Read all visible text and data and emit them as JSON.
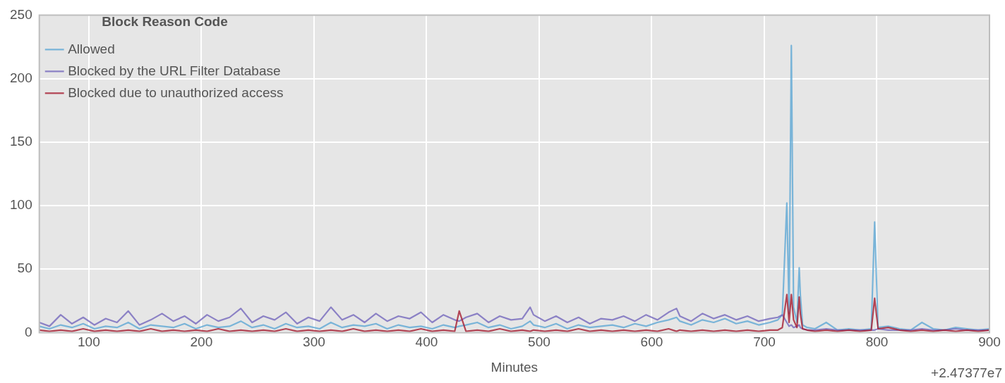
{
  "chart_data": {
    "type": "line",
    "xlabel": "Minutes",
    "legend_title": "Block Reason Code",
    "legend": "top left",
    "grid": true,
    "marker": "none",
    "line_style": "solid",
    "annotations": [
      "+2.47377e7"
    ],
    "xlim": [
      56,
      900
    ],
    "xticks": [
      100,
      200,
      300,
      400,
      500,
      600,
      700,
      800,
      900
    ],
    "ylim": [
      0,
      250
    ],
    "yticks": [
      0,
      50,
      100,
      150,
      200,
      250
    ],
    "x": [
      56,
      65,
      75,
      85,
      95,
      105,
      115,
      125,
      135,
      145,
      155,
      165,
      175,
      185,
      195,
      205,
      215,
      225,
      235,
      245,
      255,
      265,
      275,
      285,
      295,
      305,
      315,
      325,
      335,
      345,
      355,
      365,
      375,
      385,
      395,
      405,
      415,
      425,
      429,
      435,
      445,
      455,
      465,
      475,
      485,
      492,
      495,
      505,
      515,
      525,
      535,
      545,
      555,
      565,
      575,
      585,
      595,
      605,
      615,
      622,
      625,
      635,
      645,
      655,
      665,
      675,
      685,
      695,
      705,
      712,
      716,
      720,
      722,
      724,
      726,
      729,
      731,
      732,
      734,
      738,
      745,
      755,
      765,
      775,
      785,
      795,
      798,
      801,
      810,
      820,
      830,
      840,
      850,
      860,
      870,
      880,
      890,
      900
    ],
    "series": [
      {
        "name": "Allowed",
        "color": "#5ea8d4",
        "values": [
          5,
          3,
          6,
          4,
          7,
          3,
          5,
          4,
          8,
          3,
          6,
          5,
          4,
          7,
          3,
          6,
          4,
          5,
          9,
          4,
          6,
          3,
          7,
          4,
          5,
          3,
          8,
          4,
          6,
          5,
          7,
          3,
          6,
          4,
          5,
          3,
          6,
          4,
          5,
          6,
          8,
          4,
          6,
          3,
          5,
          9,
          6,
          4,
          7,
          3,
          6,
          4,
          5,
          6,
          4,
          7,
          5,
          8,
          10,
          12,
          9,
          6,
          10,
          8,
          11,
          7,
          9,
          6,
          8,
          10,
          14,
          102,
          15,
          226,
          20,
          8,
          51,
          30,
          6,
          4,
          3,
          8,
          2,
          3,
          2,
          3,
          87,
          4,
          5,
          3,
          2,
          8,
          3,
          2,
          4,
          3,
          2,
          3
        ]
      },
      {
        "name": "Blocked by the URL Filter Database",
        "color": "#7468bd",
        "values": [
          8,
          5,
          14,
          7,
          12,
          6,
          11,
          8,
          17,
          6,
          10,
          15,
          9,
          13,
          7,
          14,
          9,
          12,
          19,
          8,
          13,
          10,
          16,
          7,
          12,
          9,
          20,
          10,
          14,
          8,
          15,
          9,
          13,
          11,
          16,
          8,
          14,
          10,
          9,
          12,
          15,
          8,
          13,
          10,
          11,
          20,
          14,
          9,
          13,
          8,
          12,
          7,
          11,
          10,
          13,
          9,
          14,
          10,
          16,
          19,
          13,
          9,
          15,
          11,
          14,
          10,
          13,
          9,
          11,
          12,
          14,
          8,
          5,
          6,
          4,
          5,
          6,
          4,
          3,
          2,
          2,
          3,
          2,
          2,
          2,
          2,
          2,
          3,
          2,
          2,
          2,
          3,
          2,
          2,
          3,
          2,
          2,
          2
        ]
      },
      {
        "name": "Blocked due to unauthorized access",
        "color": "#a51c30",
        "values": [
          2,
          1,
          2,
          1,
          3,
          1,
          2,
          1,
          2,
          1,
          3,
          1,
          2,
          1,
          2,
          1,
          3,
          1,
          2,
          1,
          2,
          1,
          3,
          1,
          2,
          1,
          2,
          1,
          3,
          1,
          2,
          1,
          2,
          1,
          3,
          1,
          2,
          1,
          17,
          1,
          2,
          1,
          3,
          1,
          2,
          1,
          2,
          1,
          2,
          1,
          3,
          1,
          2,
          1,
          2,
          1,
          2,
          1,
          3,
          1,
          2,
          1,
          2,
          1,
          2,
          1,
          2,
          1,
          2,
          2,
          4,
          30,
          8,
          30,
          10,
          4,
          28,
          15,
          3,
          2,
          1,
          2,
          1,
          2,
          1,
          2,
          27,
          3,
          4,
          2,
          1,
          2,
          1,
          2,
          1,
          2,
          1,
          2
        ]
      }
    ]
  }
}
